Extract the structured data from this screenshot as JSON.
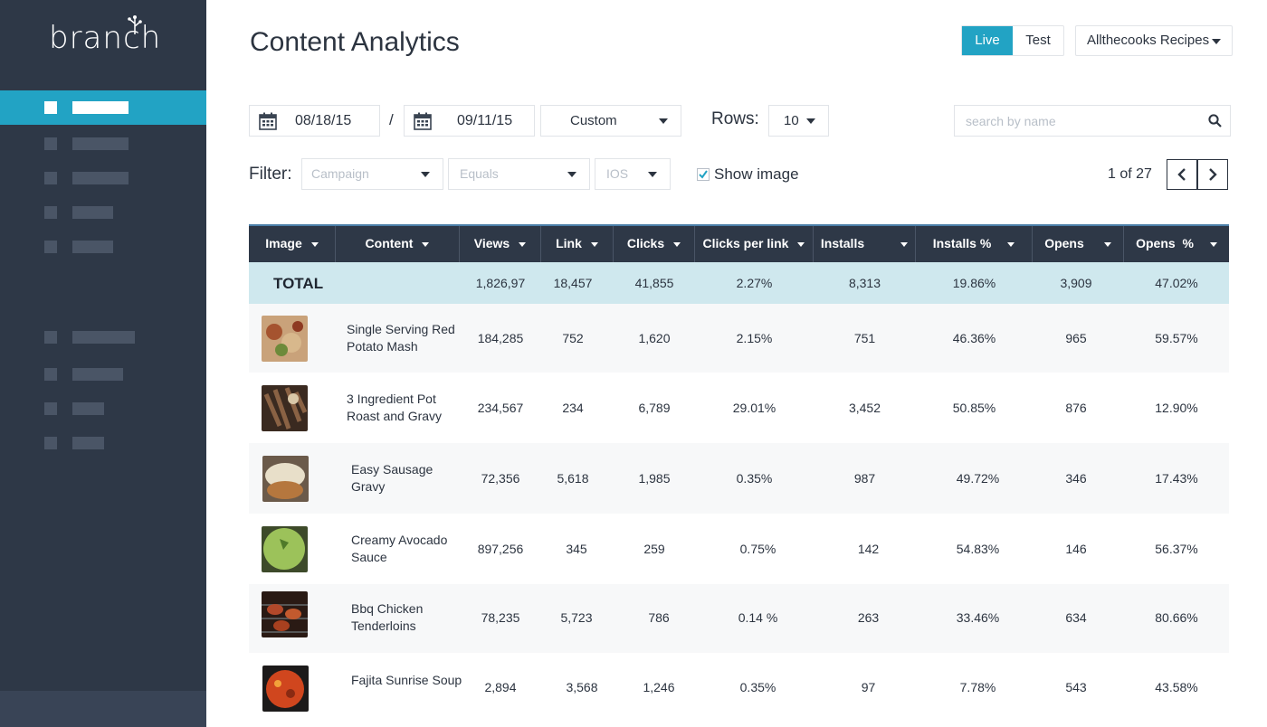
{
  "brand": {
    "name": "branch"
  },
  "sidebar": {
    "items": [
      {
        "icon": "square",
        "active": true
      },
      {
        "icon": "square",
        "active": false
      },
      {
        "icon": "square",
        "active": false
      },
      {
        "icon": "square",
        "active": false
      },
      {
        "icon": "square",
        "active": false
      },
      {
        "icon": "square",
        "active": false
      },
      {
        "icon": "square",
        "active": false
      },
      {
        "icon": "square",
        "active": false
      },
      {
        "icon": "square",
        "active": false
      }
    ]
  },
  "header": {
    "title": "Content Analytics",
    "env_live": "Live",
    "env_test": "Test",
    "app_name": "Allthecooks Recipes"
  },
  "controls": {
    "start_date": "08/18/15",
    "separator": "/",
    "end_date": "09/11/15",
    "range": "Custom",
    "rows_label": "Rows:",
    "rows_value": "10",
    "search_placeholder": "search by name"
  },
  "filter": {
    "label": "Filter:",
    "campaign_placeholder": "Campaign",
    "operator_placeholder": "Equals",
    "platform_placeholder": "IOS",
    "show_image_label": "Show image",
    "show_image_checked": true,
    "page_count": "1 of 27"
  },
  "table": {
    "columns": [
      "Image",
      "Content",
      "Views",
      "Link",
      "Clicks",
      "Clicks per link",
      "Installs",
      "Installs %",
      "Opens",
      "Opens  %"
    ],
    "total": {
      "label": "TOTAL",
      "views": "1,826,97",
      "link": "18,457",
      "clicks": "41,855",
      "cpl": "2.27%",
      "installs": "8,313",
      "installs_pct": "19.86%",
      "opens": "3,909",
      "opens_pct": "47.02%"
    },
    "rows": [
      {
        "content": "Single Serving Red Potato Mash",
        "views": "184,285",
        "link": "752",
        "clicks": "1,620",
        "cpl": "2.15%",
        "installs": "751",
        "installs_pct": "46.36%",
        "opens": "965",
        "opens_pct": "59.57%"
      },
      {
        "content": "3 Ingredient Pot Roast and Gravy",
        "views": "234,567",
        "link": "234",
        "clicks": "6,789",
        "cpl": "29.01%",
        "installs": "3,452",
        "installs_pct": "50.85%",
        "opens": "876",
        "opens_pct": "12.90%"
      },
      {
        "content": "Easy Sausage Gravy",
        "views": "72,356",
        "link": "5,618",
        "clicks": "1,985",
        "cpl": "0.35%",
        "installs": "987",
        "installs_pct": "49.72%",
        "opens": "346",
        "opens_pct": "17.43%"
      },
      {
        "content": "Creamy Avocado Sauce",
        "views": "897,256",
        "link": "345",
        "clicks": "259",
        "cpl": "0.75%",
        "installs": "142",
        "installs_pct": "54.83%",
        "opens": "146",
        "opens_pct": "56.37%"
      },
      {
        "content": "Bbq Chicken Tenderloins",
        "views": "78,235",
        "link": "5,723",
        "clicks": "786",
        "cpl": "0.14 %",
        "installs": "263",
        "installs_pct": "33.46%",
        "opens": "634",
        "opens_pct": "80.66%"
      },
      {
        "content": "Fajita Sunrise Soup",
        "views": "2,894",
        "link": "3,568",
        "clicks": "1,246",
        "cpl": "0.35%",
        "installs": "97",
        "installs_pct": "7.78%",
        "opens": "543",
        "opens_pct": "43.58%"
      }
    ]
  },
  "colors": {
    "sidebar_bg": "#2e3847",
    "accent": "#22a3c4",
    "total_row_bg": "#cfe8ee",
    "header_bg": "#2e3847"
  }
}
